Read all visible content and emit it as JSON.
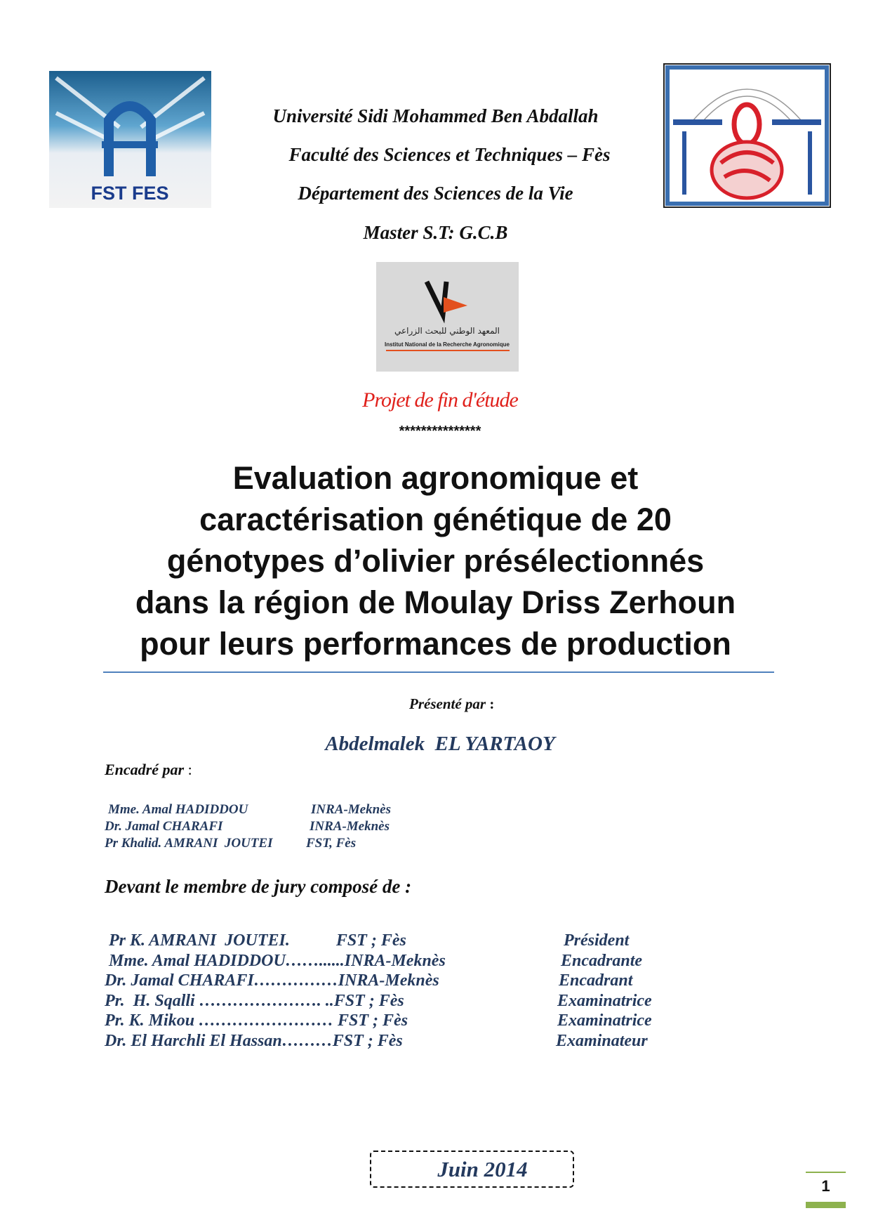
{
  "header": {
    "university": "Université Sidi Mohammed Ben Abdallah",
    "faculty": "Faculté des Sciences et Techniques – Fès",
    "department": "Département des Sciences de la Vie",
    "master": "Master S.T: G.C.B"
  },
  "logos": {
    "fst": "FST FES",
    "inra_arabic": "المعهد الوطني للبحث الزراعي",
    "inra": "Institut National de la Recherche Agronomique"
  },
  "project_label": "Projet de fin d'étude",
  "stars": "***************",
  "title_lines": [
    "Evaluation agronomique et",
    "caractérisation génétique de 20",
    "génotypes d’olivier présélectionnés",
    "dans la région de Moulay Driss Zerhoun",
    "pour leurs performances de production"
  ],
  "presented_by_label": "Présenté par",
  "presented_by_colon": " :",
  "author": "Abdelmalek  EL YARTAOY",
  "supervised_by_label": "Encadré par",
  "supervised_by_colon": " :",
  "supervisors": [
    {
      "name": "Mme. Amal HADIDDOU",
      "affiliation": "INRA-Meknès"
    },
    {
      "name": "Dr. Jamal CHARAFI",
      "affiliation": "INRA-Meknès"
    },
    {
      "name": "Pr Khalid. AMRANI  JOUTEI",
      "affiliation": "FST, Fès"
    }
  ],
  "jury_label": "Devant le membre de jury composé de :",
  "jury": [
    {
      "line": "Pr K. AMRANI  JOUTEI.           FST ; Fès",
      "role": "Président"
    },
    {
      "line": "Mme. Amal HADIDDOU……......INRA-Meknès",
      "role": "Encadrante"
    },
    {
      "line": "Dr. Jamal CHARAFI……………INRA-Meknès",
      "role": "Encadrant"
    },
    {
      "line": "Pr.  H. Sqalli …………………. ..FST ; Fès",
      "role": "Examinatrice"
    },
    {
      "line": "Pr. K. Mikou …………………… FST ; Fès",
      "role": "Examinatrice"
    },
    {
      "line": "Dr. El Harchli El Hassan………FST ; Fès",
      "role": "Examinateur"
    }
  ],
  "date": "Juin 2014",
  "page_number": "1",
  "colors": {
    "text_blue": "#243a5e",
    "red": "#e0201b",
    "rule_blue": "#4f81bd",
    "page_green": "#8db24e"
  }
}
